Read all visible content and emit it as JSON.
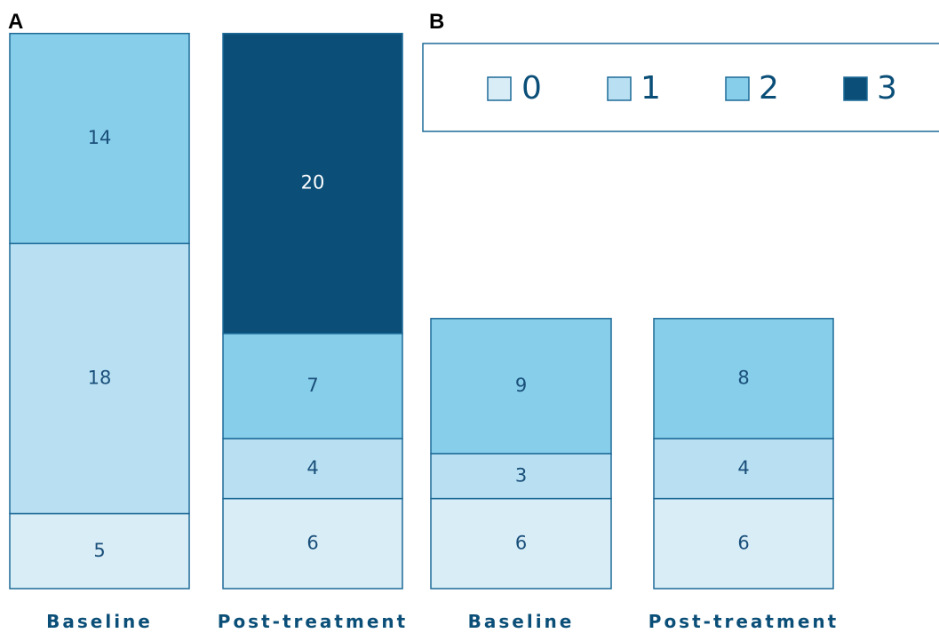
{
  "panels": [
    {
      "label": "A"
    },
    {
      "label": "B"
    }
  ],
  "legend": {
    "entries": [
      {
        "name": "0",
        "color": "#d9edf7"
      },
      {
        "name": "1",
        "color": "#b8e0f2"
      },
      {
        "name": "2",
        "color": "#87ceea"
      },
      {
        "name": "3",
        "color": "#0b4f78"
      }
    ]
  },
  "colors": {
    "border": "#1d6a97",
    "label_text": "#1a4f7a",
    "label_text_on_dark": "#ffffff",
    "category_text": "#0b4f78"
  },
  "chart_data": [
    {
      "type": "bar",
      "stacked": true,
      "panel": "A",
      "categories": [
        "Baseline",
        "Post-treatment"
      ],
      "series": [
        {
          "name": "0",
          "values": [
            5,
            6
          ]
        },
        {
          "name": "1",
          "values": [
            18,
            4
          ]
        },
        {
          "name": "2",
          "values": [
            14,
            7
          ]
        },
        {
          "name": "3",
          "values": [
            0,
            20
          ]
        }
      ]
    },
    {
      "type": "bar",
      "stacked": true,
      "panel": "B",
      "categories": [
        "Baseline",
        "Post-treatment"
      ],
      "series": [
        {
          "name": "0",
          "values": [
            6,
            6
          ]
        },
        {
          "name": "1",
          "values": [
            3,
            4
          ]
        },
        {
          "name": "2",
          "values": [
            9,
            8
          ]
        },
        {
          "name": "3",
          "values": [
            0,
            0
          ]
        }
      ]
    }
  ]
}
